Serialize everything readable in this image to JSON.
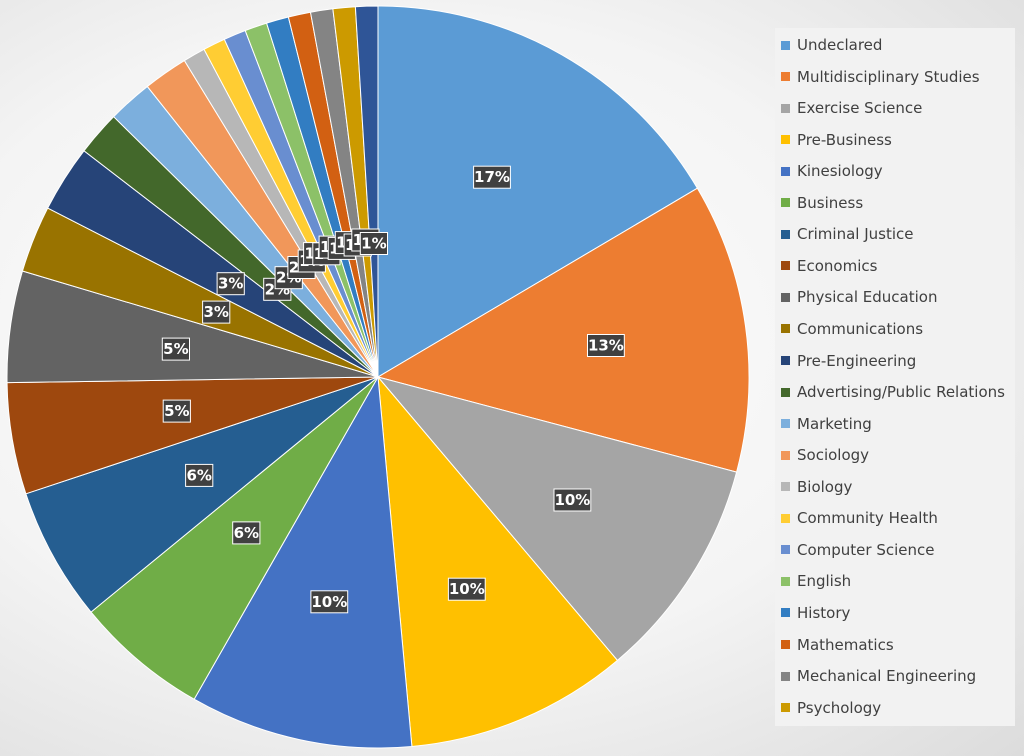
{
  "chart_data": {
    "type": "pie",
    "title": "",
    "legend_position": "right",
    "slices": [
      {
        "label": "Undeclared",
        "value": 17,
        "display": "17%",
        "color": "#5B9BD5"
      },
      {
        "label": "Multidisciplinary Studies",
        "value": 13,
        "display": "13%",
        "color": "#ED7D31"
      },
      {
        "label": "Exercise Science",
        "value": 10,
        "display": "10%",
        "color": "#A5A5A5"
      },
      {
        "label": "Pre-Business",
        "value": 10,
        "display": "10%",
        "color": "#FFC000"
      },
      {
        "label": "Kinesiology",
        "value": 10,
        "display": "10%",
        "color": "#4472C4"
      },
      {
        "label": "Business",
        "value": 6,
        "display": "6%",
        "color": "#70AD47"
      },
      {
        "label": "Criminal Justice",
        "value": 6,
        "display": "6%",
        "color": "#255E91"
      },
      {
        "label": "Economics",
        "value": 5,
        "display": "5%",
        "color": "#9E480E"
      },
      {
        "label": "Physical Education",
        "value": 5,
        "display": "5%",
        "color": "#636363"
      },
      {
        "label": "Communications",
        "value": 3,
        "display": "3%",
        "color": "#997300"
      },
      {
        "label": "Pre-Engineering",
        "value": 3,
        "display": "3%",
        "color": "#264478"
      },
      {
        "label": "Advertising/Public Relations",
        "value": 2,
        "display": "2%",
        "color": "#43682B"
      },
      {
        "label": "Marketing",
        "value": 2,
        "display": "2%",
        "color": "#7CAFDD"
      },
      {
        "label": "Sociology",
        "value": 2,
        "display": "2%",
        "color": "#F1975A"
      },
      {
        "label": "Biology",
        "value": 1,
        "display": "1%",
        "color": "#B7B7B7"
      },
      {
        "label": "Community Health",
        "value": 1,
        "display": "1%",
        "color": "#FFCD33"
      },
      {
        "label": "Computer Science",
        "value": 1,
        "display": "1%",
        "color": "#698ED0"
      },
      {
        "label": "English",
        "value": 1,
        "display": "1%",
        "color": "#8CC168"
      },
      {
        "label": "History",
        "value": 1,
        "display": "1%",
        "color": "#327DC2"
      },
      {
        "label": "Mathematics",
        "value": 1,
        "display": "1%",
        "color": "#D26012"
      },
      {
        "label": "Mechanical Engineering",
        "value": 1,
        "display": "1%",
        "color": "#848484"
      },
      {
        "label": "Psychology",
        "value": 1,
        "display": "1%",
        "color": "#CC9A00"
      },
      {
        "label": "",
        "value": 1,
        "display": "1%",
        "color": "#2F5597"
      }
    ]
  }
}
